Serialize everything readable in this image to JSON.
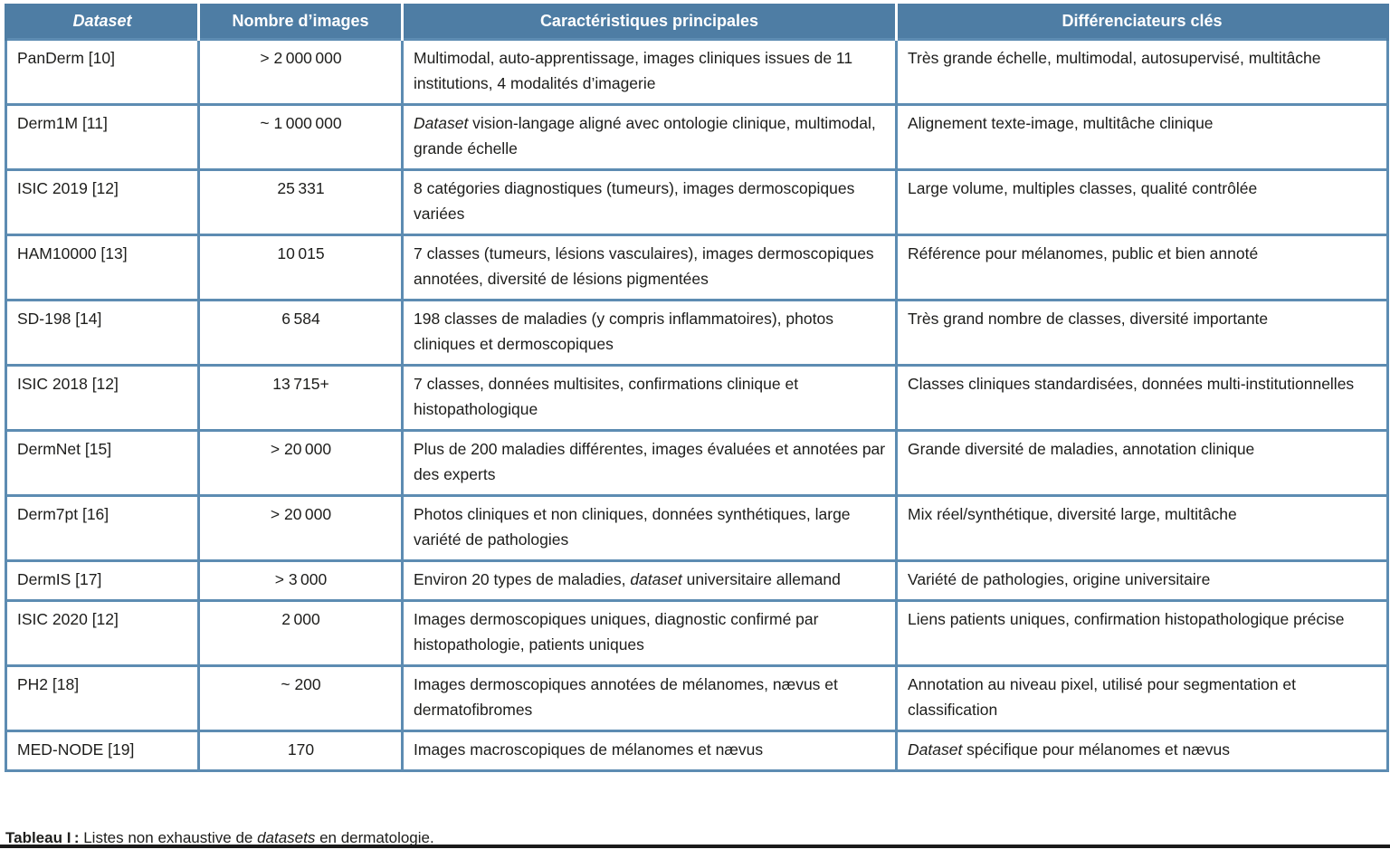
{
  "accent": {
    "header_bg": "#4e7da4",
    "border_color": "#5d8cb2",
    "header_text": "#ffffff",
    "body_text": "#1d1d1b",
    "rule_color": "#1a1a1a"
  },
  "table": {
    "columns": [
      {
        "key": "dataset",
        "label": "*Dataset*"
      },
      {
        "key": "count",
        "label": "Nombre d’images"
      },
      {
        "key": "caracteristiques",
        "label": "Caractéristiques principales"
      },
      {
        "key": "differenciateurs",
        "label": "Différenciateurs clés"
      }
    ],
    "rows": [
      {
        "dataset": "PanDerm [10]",
        "count": "> 2 000 000",
        "caracteristiques": "Multimodal, auto-apprentissage, images cliniques issues de 11 institutions, 4 modalités d’imagerie",
        "differenciateurs": "Très grande échelle, multimodal, autosupervisé, multitâche"
      },
      {
        "dataset": "Derm1M [11]",
        "count": "~ 1 000 000",
        "caracteristiques": "*Dataset* vision-langage aligné avec ontologie clinique, multimodal, grande échelle",
        "differenciateurs": "Alignement texte-image, multitâche clinique"
      },
      {
        "dataset": "ISIC 2019 [12]",
        "count": "25 331",
        "caracteristiques": "8 catégories diagnostiques (tumeurs), images dermoscopiques variées",
        "differenciateurs": "Large volume, multiples classes, qualité contrôlée"
      },
      {
        "dataset": "HAM10000 [13]",
        "count": "10 015",
        "caracteristiques": "7 classes (tumeurs, lésions vasculaires), images dermoscopiques annotées, diversité de lésions pigmentées",
        "differenciateurs": "Référence pour mélanomes, public et bien annoté"
      },
      {
        "dataset": "SD-198 [14]",
        "count": "6 584",
        "caracteristiques": "198 classes de maladies (y compris inflammatoires), photos cliniques et dermoscopiques",
        "differenciateurs": "Très grand nombre de classes, diversité importante"
      },
      {
        "dataset": "ISIC 2018 [12]",
        "count": "13 715+",
        "caracteristiques": "7 classes, données multisites, confirmations clinique et histopathologique",
        "differenciateurs": "Classes cliniques standardisées, données multi-institutionnelles"
      },
      {
        "dataset": "DermNet [15]",
        "count": "> 20 000",
        "caracteristiques": "Plus de 200 maladies différentes, images évaluées et annotées par des experts",
        "differenciateurs": "Grande diversité de maladies, annotation clinique"
      },
      {
        "dataset": "Derm7pt [16]",
        "count": "> 20 000",
        "caracteristiques": "Photos cliniques et non cliniques, données synthétiques, large variété de pathologies",
        "differenciateurs": "Mix réel/synthétique, diversité large, multitâche"
      },
      {
        "dataset": "DermIS [17]",
        "count": "> 3 000",
        "caracteristiques": "Environ 20 types de maladies, *dataset* universitaire allemand",
        "differenciateurs": "Variété de pathologies, origine universitaire"
      },
      {
        "dataset": "ISIC 2020 [12]",
        "count": "2 000",
        "caracteristiques": "Images dermoscopiques uniques, diagnostic confirmé par histopathologie, patients uniques",
        "differenciateurs": "Liens patients uniques, confirmation histopathologique précise"
      },
      {
        "dataset": "PH2 [18]",
        "count": "~ 200",
        "caracteristiques": "Images dermoscopiques annotées de mélanomes, nævus et dermatofibromes",
        "differenciateurs": "Annotation au niveau pixel, utilisé pour segmentation et classification"
      },
      {
        "dataset": "MED-NODE [19]",
        "count": "170",
        "caracteristiques": "Images macroscopiques de mélanomes et nævus",
        "differenciateurs": "*Dataset* spécifique pour mélanomes et nævus"
      }
    ]
  },
  "caption": {
    "label": "Tableau I :",
    "text": " Listes non exhaustive de *datasets* en dermatologie."
  }
}
